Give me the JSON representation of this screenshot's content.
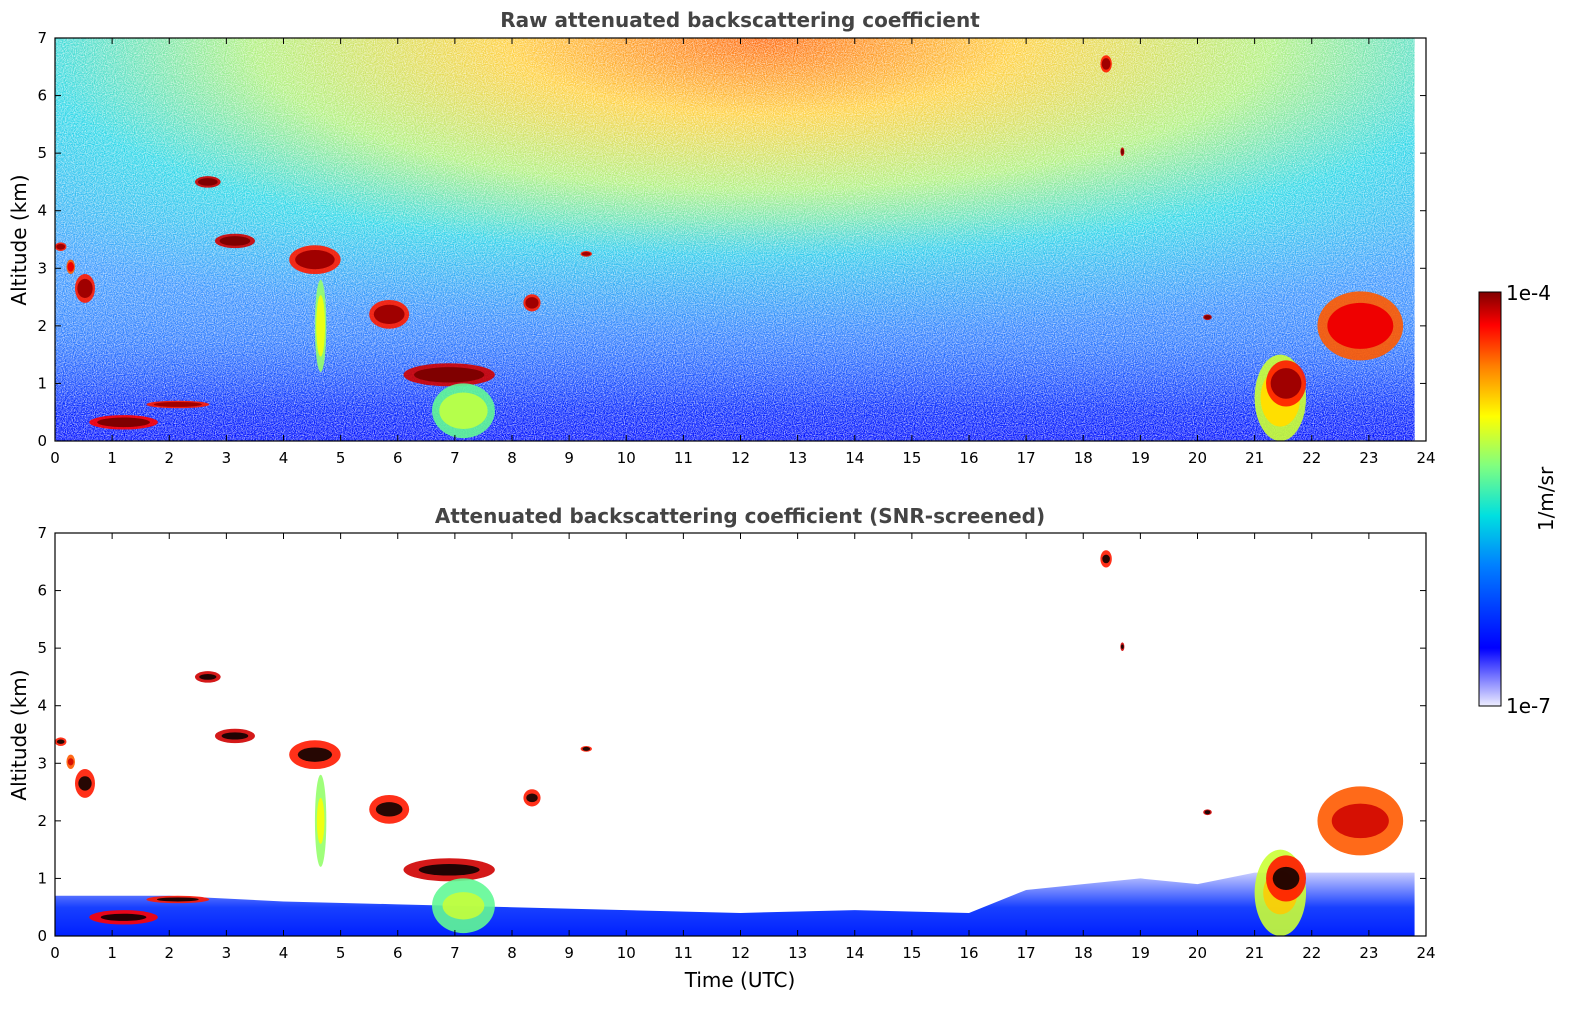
{
  "chart_data": [
    {
      "type": "heatmap",
      "title": "Raw attenuated backscattering coefficient",
      "ylabel": "Altitude (km)",
      "xlim": [
        0,
        24
      ],
      "ylim": [
        0,
        7
      ],
      "xticks": [
        "0",
        "1",
        "2",
        "3",
        "4",
        "5",
        "6",
        "7",
        "8",
        "9",
        "10",
        "11",
        "12",
        "13",
        "14",
        "15",
        "16",
        "17",
        "18",
        "19",
        "20",
        "21",
        "22",
        "23",
        "24"
      ],
      "yticks": [
        "0",
        "1",
        "2",
        "3",
        "4",
        "5",
        "6",
        "7"
      ],
      "grid": false,
      "clouds": [
        {
          "x0": 0.0,
          "x1": 0.2,
          "y0": 3.3,
          "y1": 3.45,
          "level": 0.9
        },
        {
          "x0": 0.2,
          "x1": 0.35,
          "y0": 2.9,
          "y1": 3.15,
          "level": 0.85
        },
        {
          "x0": 0.35,
          "x1": 0.7,
          "y0": 2.4,
          "y1": 2.9,
          "level": 0.9
        },
        {
          "x0": 0.6,
          "x1": 1.8,
          "y0": 0.2,
          "y1": 0.45,
          "level": 0.92
        },
        {
          "x0": 1.6,
          "x1": 2.7,
          "y0": 0.57,
          "y1": 0.7,
          "level": 0.9
        },
        {
          "x0": 2.45,
          "x1": 2.9,
          "y0": 4.4,
          "y1": 4.6,
          "level": 0.95
        },
        {
          "x0": 2.8,
          "x1": 3.5,
          "y0": 3.35,
          "y1": 3.6,
          "level": 0.95
        },
        {
          "x0": 4.1,
          "x1": 5.0,
          "y0": 2.9,
          "y1": 3.4,
          "level": 0.9
        },
        {
          "x0": 4.55,
          "x1": 4.75,
          "y0": 1.2,
          "y1": 2.8,
          "level": 0.6
        },
        {
          "x0": 5.5,
          "x1": 6.2,
          "y0": 1.95,
          "y1": 2.45,
          "level": 0.9
        },
        {
          "x0": 6.1,
          "x1": 7.7,
          "y0": 0.95,
          "y1": 1.35,
          "level": 0.95
        },
        {
          "x0": 6.6,
          "x1": 7.7,
          "y0": 0.05,
          "y1": 1.0,
          "level": 0.55
        },
        {
          "x0": 8.2,
          "x1": 8.5,
          "y0": 2.25,
          "y1": 2.55,
          "level": 0.9
        },
        {
          "x0": 9.2,
          "x1": 9.4,
          "y0": 3.2,
          "y1": 3.3,
          "level": 0.9
        },
        {
          "x0": 18.3,
          "x1": 18.5,
          "y0": 6.4,
          "y1": 6.7,
          "level": 0.9
        },
        {
          "x0": 18.65,
          "x1": 18.72,
          "y0": 4.95,
          "y1": 5.1,
          "level": 0.95
        },
        {
          "x0": 20.1,
          "x1": 20.25,
          "y0": 2.1,
          "y1": 2.2,
          "level": 0.95
        },
        {
          "x0": 21.0,
          "x1": 21.9,
          "y0": 0.0,
          "y1": 1.5,
          "level": 0.65
        },
        {
          "x0": 21.2,
          "x1": 21.9,
          "y0": 0.6,
          "y1": 1.4,
          "level": 0.9
        },
        {
          "x0": 22.1,
          "x1": 23.6,
          "y0": 1.4,
          "y1": 2.6,
          "level": 0.85
        }
      ]
    },
    {
      "type": "heatmap",
      "title": "Attenuated backscattering coefficient (SNR-screened)",
      "xlabel": "Time (UTC)",
      "ylabel": "Altitude (km)",
      "xlim": [
        0,
        24
      ],
      "ylim": [
        0,
        7
      ],
      "xticks": [
        "0",
        "1",
        "2",
        "3",
        "4",
        "5",
        "6",
        "7",
        "8",
        "9",
        "10",
        "11",
        "12",
        "13",
        "14",
        "15",
        "16",
        "17",
        "18",
        "19",
        "20",
        "21",
        "22",
        "23",
        "24"
      ],
      "yticks": [
        "0",
        "1",
        "2",
        "3",
        "4",
        "5",
        "6",
        "7"
      ],
      "grid": false,
      "boundary_layer_top_km": [
        [
          0,
          0.7
        ],
        [
          2,
          0.7
        ],
        [
          4,
          0.6
        ],
        [
          6,
          0.55
        ],
        [
          8,
          0.5
        ],
        [
          10,
          0.45
        ],
        [
          12,
          0.4
        ],
        [
          14,
          0.45
        ],
        [
          16,
          0.4
        ],
        [
          17,
          0.8
        ],
        [
          18,
          0.9
        ],
        [
          19,
          1.0
        ],
        [
          20,
          0.9
        ],
        [
          21,
          1.1
        ],
        [
          23.8,
          1.1
        ]
      ],
      "colorbar": {
        "label": "1/m/sr",
        "max_label": "1e-4",
        "min_label": "1e-7",
        "scale": "log",
        "colormap": "jet"
      }
    }
  ]
}
